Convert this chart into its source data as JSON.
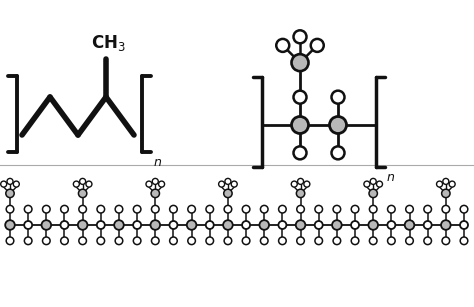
{
  "bg_color": "#ffffff",
  "line_color": "#111111",
  "gray_fill": "#b8b8b8",
  "white_fill": "#ffffff",
  "ec": "#111111",
  "figsize": [
    4.74,
    3.07
  ],
  "dpi": 100
}
